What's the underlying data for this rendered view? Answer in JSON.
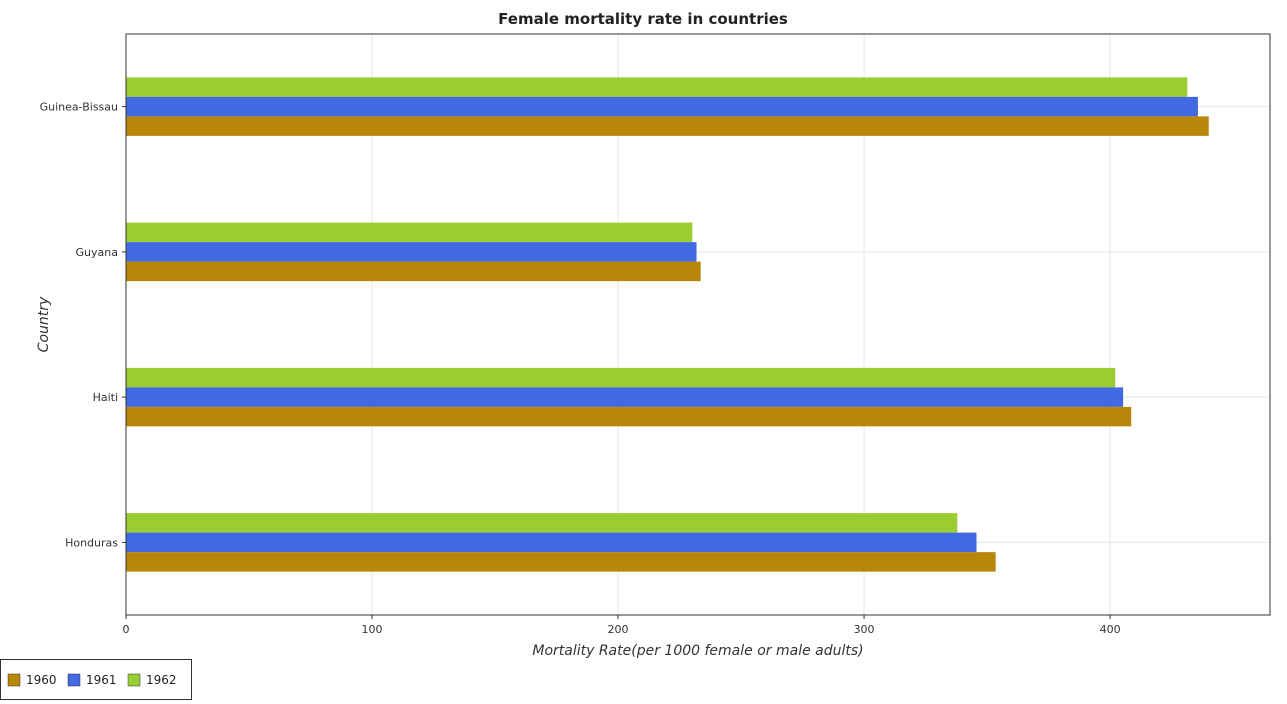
{
  "chart_data": {
    "type": "bar",
    "orientation": "horizontal",
    "title": "Female mortality rate in countries",
    "xlabel": "Mortality Rate(per 1000 female or male adults)",
    "ylabel": "Country",
    "categories": [
      "Guinea-Bissau",
      "Guyana",
      "Haiti",
      "Honduras"
    ],
    "series": [
      {
        "name": "1960",
        "color": "#b8860b",
        "values": [
          440.1,
          233.6,
          408.6,
          353.5
        ]
      },
      {
        "name": "1961",
        "color": "#4169e1",
        "values": [
          435.7,
          231.9,
          405.3,
          345.7
        ]
      },
      {
        "name": "1962",
        "color": "#9acd32",
        "values": [
          431.4,
          230.2,
          402.1,
          337.9
        ]
      }
    ],
    "xlim": [
      0,
      465
    ],
    "xticks": [
      0,
      100,
      200,
      300,
      400
    ],
    "grid": true,
    "legend": "bottom-left"
  }
}
